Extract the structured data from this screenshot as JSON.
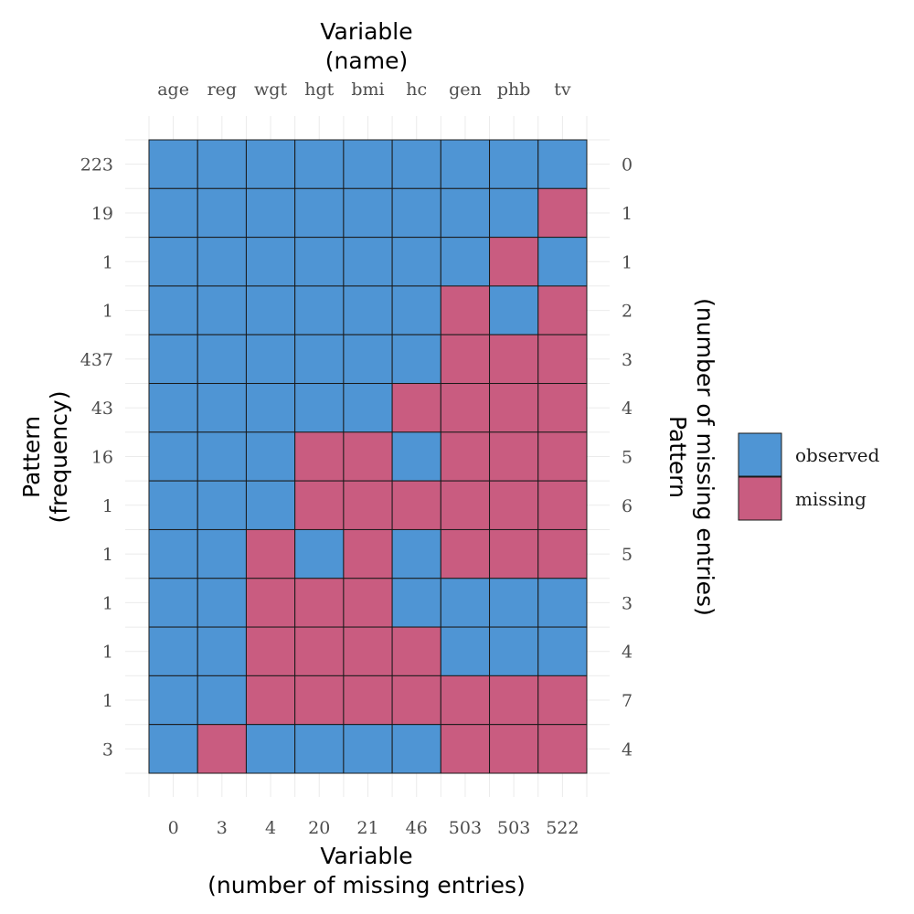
{
  "chart_data": {
    "type": "heatmap",
    "top_title": [
      "Variable",
      "(name)"
    ],
    "bottom_title": [
      "Variable",
      "(number of missing entries)"
    ],
    "left_title": [
      "Pattern",
      "(frequency)"
    ],
    "right_title": [
      "Pattern",
      "(number of missing entries)"
    ],
    "variables": [
      "age",
      "reg",
      "wgt",
      "hgt",
      "bmi",
      "hc",
      "gen",
      "phb",
      "tv"
    ],
    "variable_missing_counts": [
      "0",
      "3",
      "4",
      "20",
      "21",
      "46",
      "503",
      "503",
      "522"
    ],
    "pattern_frequencies": [
      "223",
      "19",
      "1",
      "1",
      "437",
      "43",
      "16",
      "1",
      "1",
      "1",
      "1",
      "1",
      "3"
    ],
    "pattern_missing_counts": [
      "0",
      "1",
      "1",
      "2",
      "3",
      "4",
      "5",
      "6",
      "5",
      "3",
      "4",
      "7",
      "4"
    ],
    "patterns": [
      [
        1,
        1,
        1,
        1,
        1,
        1,
        1,
        1,
        1
      ],
      [
        1,
        1,
        1,
        1,
        1,
        1,
        1,
        1,
        0
      ],
      [
        1,
        1,
        1,
        1,
        1,
        1,
        1,
        0,
        1
      ],
      [
        1,
        1,
        1,
        1,
        1,
        1,
        0,
        1,
        0
      ],
      [
        1,
        1,
        1,
        1,
        1,
        1,
        0,
        0,
        0
      ],
      [
        1,
        1,
        1,
        1,
        1,
        0,
        0,
        0,
        0
      ],
      [
        1,
        1,
        1,
        0,
        0,
        1,
        0,
        0,
        0
      ],
      [
        1,
        1,
        1,
        0,
        0,
        0,
        0,
        0,
        0
      ],
      [
        1,
        1,
        0,
        1,
        0,
        1,
        0,
        0,
        0
      ],
      [
        1,
        1,
        0,
        0,
        0,
        1,
        1,
        1,
        1
      ],
      [
        1,
        1,
        0,
        0,
        0,
        0,
        1,
        1,
        1
      ],
      [
        1,
        1,
        0,
        0,
        0,
        0,
        0,
        0,
        0
      ],
      [
        1,
        0,
        1,
        1,
        1,
        1,
        0,
        0,
        0
      ]
    ],
    "legend": [
      {
        "label": "observed",
        "value": 1,
        "color": "#4f95d4"
      },
      {
        "label": "missing",
        "value": 0,
        "color": "#c95c80"
      }
    ],
    "grid": true,
    "legend_position": "right"
  }
}
